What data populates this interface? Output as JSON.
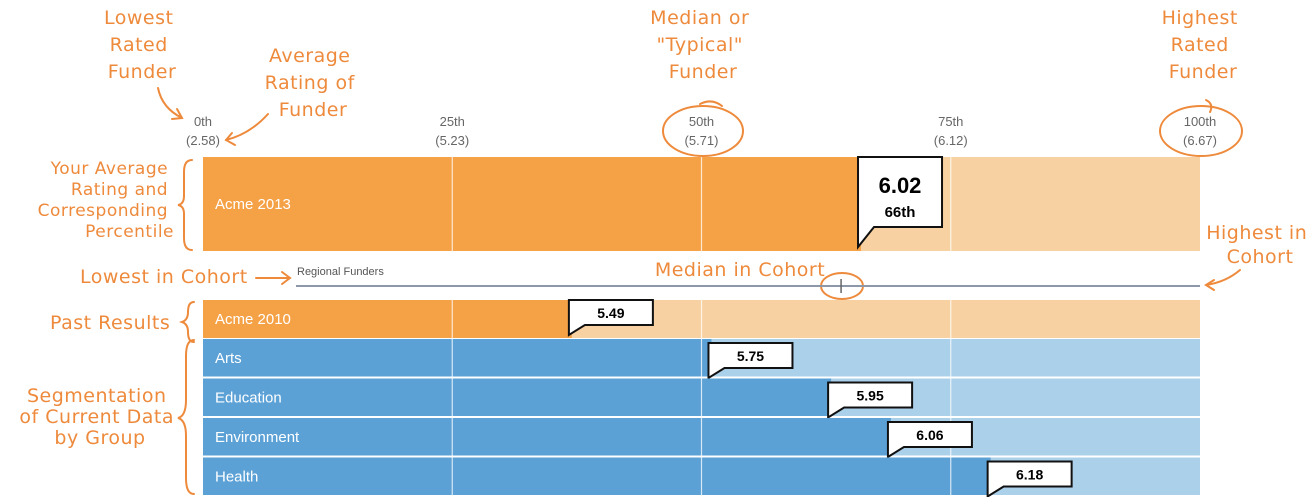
{
  "chart_data": {
    "type": "bar",
    "axis": {
      "percentiles": [
        "0th",
        "25th",
        "50th",
        "75th",
        "100th"
      ],
      "values": [
        "(2.58)",
        "(5.23)",
        "(5.71)",
        "(6.12)",
        "(6.67)"
      ]
    },
    "main": {
      "label": "Acme 2013",
      "value": "6.02",
      "percentile_label": "66th",
      "percentile": 66
    },
    "cohort": {
      "label": "Regional Funders",
      "median_percentile": 64
    },
    "past": [
      {
        "label": "Acme 2010",
        "value": "5.49",
        "percentile": 37
      }
    ],
    "segments": [
      {
        "label": "Arts",
        "value": "5.75",
        "percentile": 51
      },
      {
        "label": "Education",
        "value": "5.95",
        "percentile": 63
      },
      {
        "label": "Environment",
        "value": "6.06",
        "percentile": 69
      },
      {
        "label": "Health",
        "value": "6.18",
        "percentile": 79
      }
    ],
    "colors": {
      "orange": "#f5a146",
      "orange_light": "#f8d1a2",
      "blue": "#5ba1d6",
      "blue_light": "#abd0ea",
      "annotation": "#ee8a3c"
    }
  },
  "annotations": {
    "lowest_rated": [
      "Lowest",
      "Rated",
      "Funder"
    ],
    "average_rating": [
      "Average",
      "Rating of",
      "Funder"
    ],
    "median_typical": [
      "Median or",
      "\"Typical\"",
      "Funder"
    ],
    "highest_rated": [
      "Highest",
      "Rated",
      "Funder"
    ],
    "your_average": [
      "Your Average",
      "Rating and",
      "Corresponding",
      "Percentile"
    ],
    "lowest_in_cohort": "Lowest in Cohort",
    "median_in_cohort": "Median in Cohort",
    "highest_in_cohort": [
      "Highest in",
      "Cohort"
    ],
    "past_results": "Past Results",
    "segmentation": [
      "Segmentation",
      "of Current Data",
      "by Group"
    ]
  }
}
